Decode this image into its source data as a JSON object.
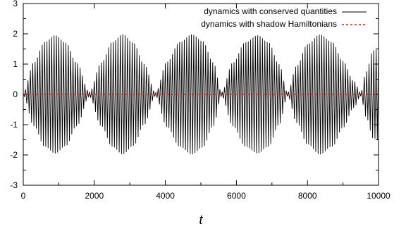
{
  "chart_data": {
    "type": "line",
    "title": "",
    "xlabel": "t",
    "ylabel": "",
    "xlim": [
      0,
      10000
    ],
    "ylim": [
      -3,
      3
    ],
    "x_ticks": [
      0,
      2000,
      4000,
      6000,
      8000,
      10000
    ],
    "y_ticks": [
      -3,
      -2,
      -1,
      0,
      1,
      2,
      3
    ],
    "grid": false,
    "legend_position": "top-right",
    "series": [
      {
        "name": "dynamics with conserved quantities",
        "color": "#000000",
        "style": "solid",
        "kind": "fast oscillation with slowly modulated amplitude (beating)",
        "envelope": {
          "t": [
            0,
            300,
            600,
            900,
            1200,
            1500,
            1860,
            2200,
            2500,
            2800,
            3100,
            3400,
            3720,
            4050,
            4400,
            4750,
            5050,
            5350,
            5580,
            5900,
            6250,
            6600,
            6900,
            7200,
            7440,
            7700,
            8000,
            8350,
            8700,
            9000,
            9300,
            9500,
            9650,
            9850,
            10000
          ],
          "amplitude": [
            0.05,
            1.05,
            1.72,
            1.95,
            1.7,
            1.05,
            0.08,
            1.05,
            1.72,
            1.98,
            1.7,
            1.0,
            0.06,
            1.08,
            1.72,
            1.98,
            1.75,
            1.05,
            0.07,
            1.05,
            1.72,
            1.95,
            1.72,
            1.0,
            0.06,
            0.95,
            1.65,
            1.98,
            1.72,
            1.1,
            0.45,
            0.06,
            0.75,
            1.45,
            1.5
          ]
        },
        "oscillation_cycles": 150
      },
      {
        "name": "dynamics with shadow Hamiltonians",
        "color": "#e02020",
        "style": "dashed",
        "x": [
          0,
          10000
        ],
        "y": [
          0,
          0
        ]
      }
    ]
  }
}
